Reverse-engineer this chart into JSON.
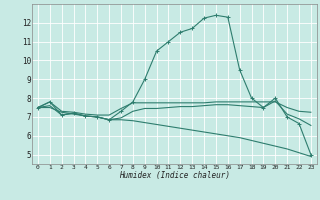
{
  "bg_color": "#c8eae4",
  "line_color": "#2e7d6e",
  "grid_color": "#ffffff",
  "xlabel": "Humidex (Indice chaleur)",
  "ylim": [
    4.5,
    13.0
  ],
  "xlim": [
    -0.5,
    23.5
  ],
  "yticks": [
    5,
    6,
    7,
    8,
    9,
    10,
    11,
    12
  ],
  "xticks": [
    0,
    1,
    2,
    3,
    4,
    5,
    6,
    7,
    8,
    9,
    10,
    11,
    12,
    13,
    14,
    15,
    16,
    17,
    18,
    19,
    20,
    21,
    22,
    23
  ],
  "xtick_labels": [
    "0",
    "1",
    "2",
    "3",
    "4",
    "5",
    "6",
    "7",
    "8",
    "9",
    "10",
    "11",
    "12",
    "13",
    "14",
    "15",
    "16",
    "17",
    "18",
    "19",
    "20",
    "21",
    "22",
    "23"
  ],
  "series1_x": [
    0,
    1,
    2,
    3,
    4,
    5,
    6,
    7,
    8,
    9,
    10,
    11,
    12,
    13,
    14,
    15,
    16,
    17,
    18,
    19,
    20,
    21,
    22,
    23
  ],
  "series1_y": [
    7.5,
    7.8,
    7.1,
    7.2,
    7.05,
    7.0,
    6.85,
    7.3,
    7.8,
    9.0,
    10.5,
    11.0,
    11.5,
    11.7,
    12.25,
    12.4,
    12.3,
    9.5,
    8.0,
    7.5,
    8.0,
    7.0,
    6.65,
    5.0
  ],
  "series2_x": [
    0,
    1,
    2,
    3,
    4,
    5,
    6,
    7,
    8,
    9,
    10,
    11,
    12,
    13,
    14,
    15,
    16,
    17,
    18,
    19,
    20,
    21,
    22,
    23
  ],
  "series2_y": [
    7.5,
    7.8,
    7.3,
    7.25,
    7.15,
    7.1,
    7.1,
    7.45,
    7.75,
    7.75,
    7.75,
    7.75,
    7.75,
    7.75,
    7.75,
    7.8,
    7.8,
    7.8,
    7.8,
    7.8,
    7.8,
    7.5,
    7.3,
    7.25
  ],
  "series3_x": [
    0,
    1,
    2,
    3,
    4,
    5,
    6,
    7,
    8,
    9,
    10,
    11,
    12,
    13,
    14,
    15,
    16,
    17,
    18,
    19,
    20,
    21,
    22,
    23
  ],
  "series3_y": [
    7.5,
    7.5,
    7.25,
    7.15,
    7.05,
    7.0,
    6.85,
    6.85,
    6.8,
    6.7,
    6.6,
    6.5,
    6.4,
    6.3,
    6.2,
    6.1,
    6.0,
    5.9,
    5.75,
    5.6,
    5.45,
    5.3,
    5.1,
    4.9
  ],
  "series4_x": [
    0,
    1,
    2,
    3,
    4,
    5,
    6,
    7,
    8,
    9,
    10,
    11,
    12,
    13,
    14,
    15,
    16,
    17,
    18,
    19,
    20,
    21,
    22,
    23
  ],
  "series4_y": [
    7.5,
    7.6,
    7.1,
    7.2,
    7.05,
    7.0,
    6.85,
    6.95,
    7.3,
    7.45,
    7.45,
    7.5,
    7.55,
    7.55,
    7.6,
    7.65,
    7.65,
    7.6,
    7.55,
    7.5,
    7.85,
    7.15,
    6.9,
    6.55
  ]
}
